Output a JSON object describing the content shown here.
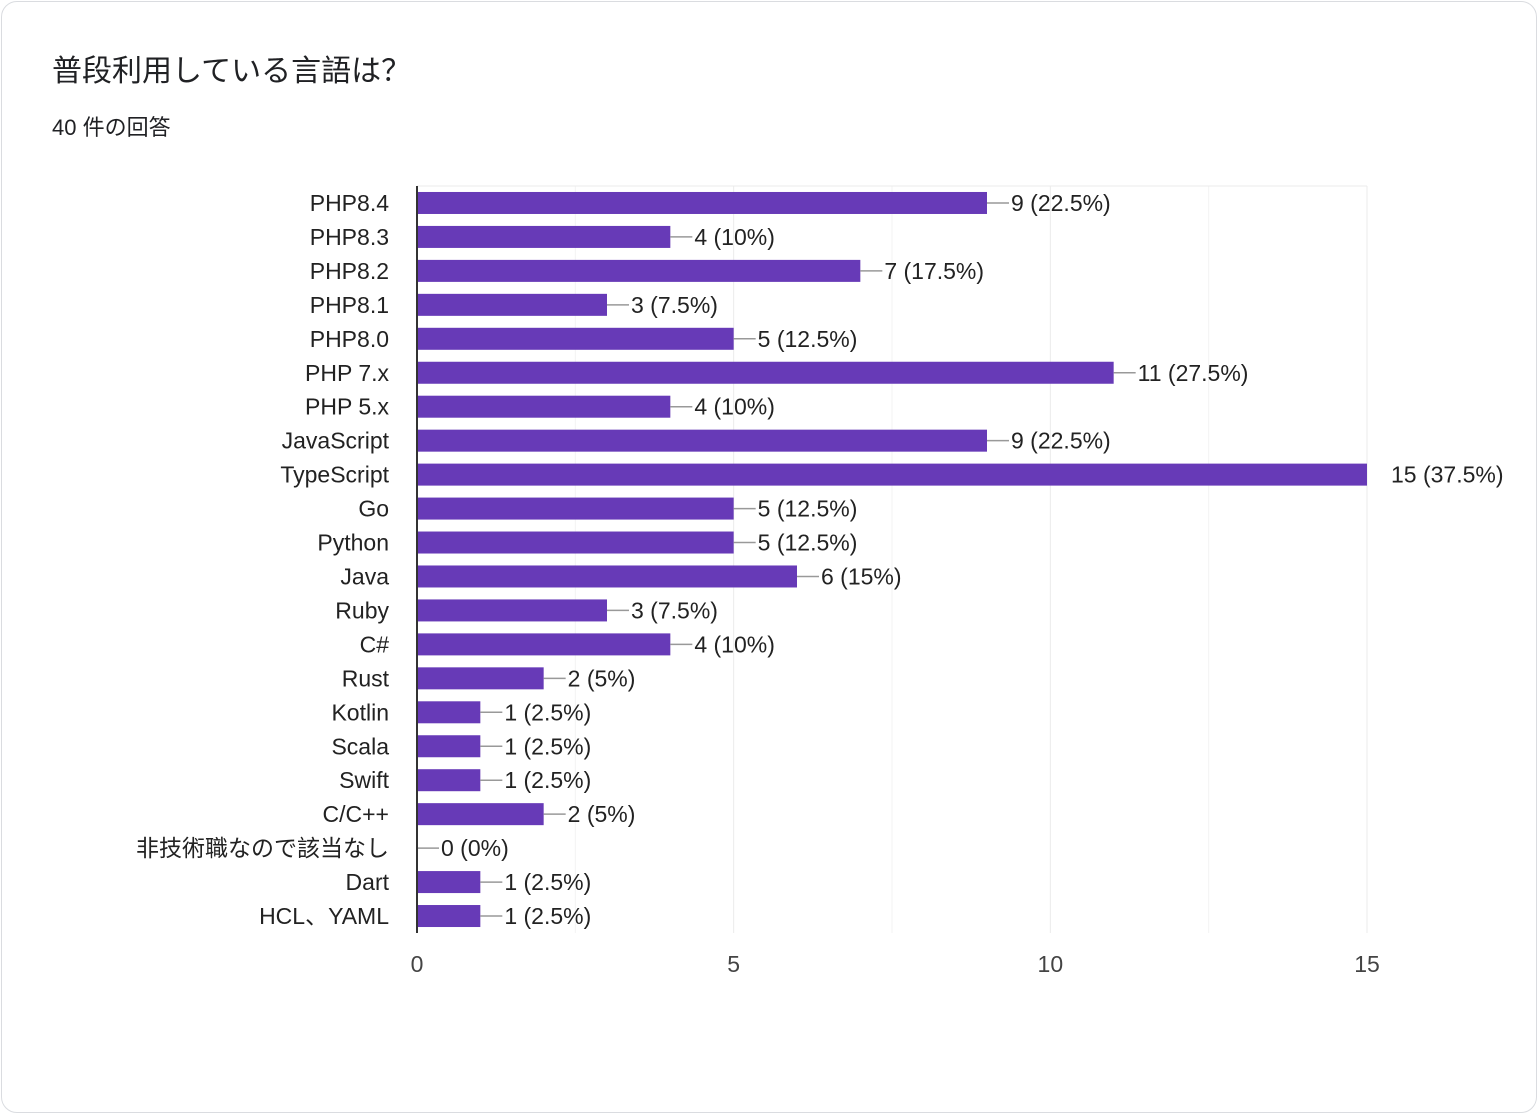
{
  "question": {
    "title": "普段利用している言語は？",
    "response_count": "40 件の回答"
  },
  "colors": {
    "bar": "#673ab7",
    "grid": "#ebebeb",
    "axis": "#333333",
    "text": "#222222",
    "leader": "#999999"
  },
  "chart_data": {
    "type": "bar",
    "orientation": "horizontal",
    "categories": [
      "PHP8.4",
      "PHP8.3",
      "PHP8.2",
      "PHP8.1",
      "PHP8.0",
      "PHP 7.x",
      "PHP 5.x",
      "JavaScript",
      "TypeScript",
      "Go",
      "Python",
      "Java",
      "Ruby",
      "C#",
      "Rust",
      "Kotlin",
      "Scala",
      "Swift",
      "C/C++",
      "非技術職なので該当なし",
      "Dart",
      "HCL、YAML"
    ],
    "values": [
      9,
      4,
      7,
      3,
      5,
      11,
      4,
      9,
      15,
      5,
      5,
      6,
      3,
      4,
      2,
      1,
      1,
      1,
      2,
      0,
      1,
      1
    ],
    "data_labels": [
      "9 (22.5%)",
      "4 (10%)",
      "7 (17.5%)",
      "3 (7.5%)",
      "5 (12.5%)",
      "11 (27.5%)",
      "4 (10%)",
      "9 (22.5%)",
      "15 (37.5%)",
      "5 (12.5%)",
      "5 (12.5%)",
      "6 (15%)",
      "3 (7.5%)",
      "4 (10%)",
      "2 (5%)",
      "1 (2.5%)",
      "1 (2.5%)",
      "1 (2.5%)",
      "2 (5%)",
      "0 (0%)",
      "1 (2.5%)",
      "1 (2.5%)"
    ],
    "xlim": [
      0,
      15
    ],
    "x_ticks": [
      0,
      5,
      10,
      15
    ],
    "minor_gridlines": [
      2.5,
      7.5,
      12.5
    ],
    "grid": true,
    "legend": "none",
    "title": "",
    "xlabel": "",
    "ylabel": ""
  }
}
